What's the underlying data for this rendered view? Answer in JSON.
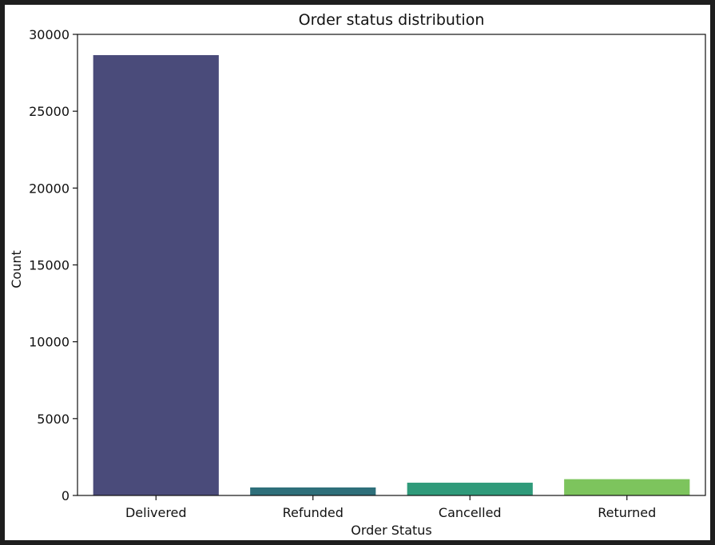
{
  "chart_data": {
    "type": "bar",
    "title": "Order status distribution",
    "xlabel": "Order Status",
    "ylabel": "Count",
    "categories": [
      "Delivered",
      "Refunded",
      "Cancelled",
      "Returned"
    ],
    "values": [
      28650,
      520,
      830,
      1060
    ],
    "colors": [
      "#482878",
      "#26828e",
      "#35b779",
      "#7ad151"
    ],
    "bar_colors_rendered": [
      "#4a4b7a",
      "#2e6f7a",
      "#2f9a7a",
      "#7dc45d"
    ],
    "ylim": [
      0,
      30000
    ],
    "yticks": [
      0,
      5000,
      10000,
      15000,
      20000,
      25000,
      30000
    ],
    "ytick_labels": [
      "0",
      "5000",
      "10000",
      "15000",
      "20000",
      "25000",
      "30000"
    ],
    "grid": false,
    "legend": "none"
  }
}
